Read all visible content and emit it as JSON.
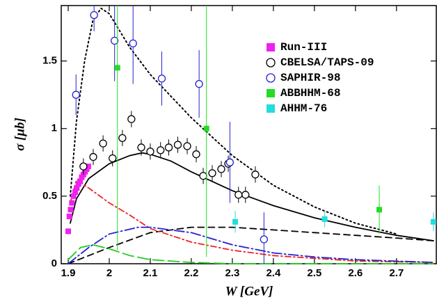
{
  "chart_data": {
    "type": "scatter",
    "xlabel": "W [GeV]",
    "ylabel": "σ [μb]",
    "xlim": [
      1.883,
      2.797
    ],
    "ylim": [
      0,
      1.91
    ],
    "xticks": [
      1.9,
      2,
      2.1,
      2.2,
      2.3,
      2.4,
      2.5,
      2.6,
      2.7
    ],
    "yticks": [
      0,
      0.5,
      1,
      1.5
    ],
    "legend_position": "upper right",
    "series": [
      {
        "name": "Run-III",
        "color": "#ee22ee",
        "marker": "square-filled",
        "x": [
          1.9,
          1.903,
          1.906,
          1.909,
          1.913,
          1.917,
          1.921,
          1.925,
          1.929,
          1.933,
          1.937,
          1.941,
          1.945,
          1.949
        ],
        "values": [
          0.24,
          0.35,
          0.4,
          0.45,
          0.5,
          0.53,
          0.56,
          0.59,
          0.61,
          0.64,
          0.66,
          0.68,
          0.7,
          0.72
        ],
        "errors": [
          0.01,
          0.01,
          0.01,
          0.01,
          0.01,
          0.01,
          0.01,
          0.01,
          0.01,
          0.01,
          0.01,
          0.01,
          0.01,
          0.01
        ]
      },
      {
        "name": "CBELSA/TAPS-09",
        "color": "#000000",
        "marker": "circle-open",
        "x": [
          1.937,
          1.961,
          1.985,
          2.008,
          2.032,
          2.054,
          2.078,
          2.1,
          2.125,
          2.145,
          2.167,
          2.19,
          2.212,
          2.229,
          2.251,
          2.273,
          2.29,
          2.315,
          2.332,
          2.356
        ],
        "values": [
          0.72,
          0.79,
          0.89,
          0.78,
          0.93,
          1.07,
          0.86,
          0.83,
          0.84,
          0.86,
          0.88,
          0.87,
          0.81,
          0.65,
          0.67,
          0.7,
          0.74,
          0.51,
          0.51,
          0.66
        ],
        "errors": [
          0.06,
          0.06,
          0.06,
          0.06,
          0.06,
          0.06,
          0.06,
          0.06,
          0.06,
          0.06,
          0.06,
          0.06,
          0.06,
          0.06,
          0.06,
          0.06,
          0.06,
          0.06,
          0.06,
          0.06
        ]
      },
      {
        "name": "SAPHIR-98",
        "color": "#2222cc",
        "marker": "circle-open",
        "x": [
          1.919,
          1.963,
          2.013,
          2.058,
          2.128,
          2.219,
          2.294,
          2.377
        ],
        "values": [
          1.25,
          1.84,
          1.65,
          1.63,
          1.37,
          1.33,
          0.75,
          0.18
        ],
        "errors": [
          0.15,
          0.12,
          0.3,
          0.3,
          0.2,
          0.25,
          0.3,
          0.2
        ]
      },
      {
        "name": "ABBHHM-68",
        "color": "#22dd22",
        "marker": "square-filled",
        "x": [
          2.02,
          2.237,
          2.658
        ],
        "values": [
          1.45,
          1.0,
          0.4
        ],
        "errors": [
          1.35,
          0.95,
          0.18
        ]
      },
      {
        "name": "AHHM-76",
        "color": "#22dddd",
        "marker": "square-filled",
        "x": [
          2.307,
          2.525,
          2.79
        ],
        "values": [
          0.31,
          0.33,
          0.31
        ],
        "errors": [
          0.08,
          0.06,
          0.07
        ]
      }
    ],
    "curves": [
      {
        "color": "#000000",
        "dash": "solid",
        "x": [
          1.905,
          1.92,
          1.95,
          2.0,
          2.05,
          2.08,
          2.1,
          2.15,
          2.2,
          2.3,
          2.4,
          2.5,
          2.6,
          2.7,
          2.79
        ],
        "values": [
          0.3,
          0.48,
          0.63,
          0.74,
          0.8,
          0.82,
          0.81,
          0.76,
          0.68,
          0.54,
          0.43,
          0.34,
          0.27,
          0.21,
          0.17
        ]
      },
      {
        "color": "#000000",
        "dash": "dotted",
        "x": [
          1.905,
          1.92,
          1.94,
          1.96,
          1.98,
          2.0,
          2.05,
          2.1,
          2.2,
          2.3,
          2.4,
          2.5,
          2.6,
          2.7
        ],
        "values": [
          0.5,
          1.05,
          1.5,
          1.8,
          1.89,
          1.85,
          1.6,
          1.4,
          1.08,
          0.8,
          0.58,
          0.42,
          0.3,
          0.22
        ]
      },
      {
        "color": "#000000",
        "dash": "dashed",
        "x": [
          1.9,
          2.0,
          2.1,
          2.2,
          2.3,
          2.4,
          2.5,
          2.6,
          2.7,
          2.79
        ],
        "values": [
          0.0,
          0.12,
          0.23,
          0.27,
          0.27,
          0.25,
          0.23,
          0.21,
          0.19,
          0.17
        ]
      },
      {
        "color": "#ee2222",
        "dash": "dashdot",
        "x": [
          1.905,
          1.92,
          1.95,
          2.0,
          2.05,
          2.1,
          2.2,
          2.3,
          2.4,
          2.5,
          2.6,
          2.79
        ],
        "values": [
          0.45,
          0.62,
          0.56,
          0.45,
          0.36,
          0.26,
          0.16,
          0.1,
          0.06,
          0.04,
          0.02,
          0.01
        ]
      },
      {
        "color": "#2222cc",
        "dash": "longdashdot",
        "x": [
          1.9,
          1.95,
          2.0,
          2.07,
          2.1,
          2.2,
          2.3,
          2.4,
          2.5,
          2.6,
          2.79
        ],
        "values": [
          0.0,
          0.12,
          0.22,
          0.27,
          0.27,
          0.23,
          0.14,
          0.08,
          0.05,
          0.03,
          0.01
        ]
      },
      {
        "color": "#22cc22",
        "dash": "longdash",
        "x": [
          1.9,
          1.93,
          1.96,
          2.0,
          2.05,
          2.1,
          2.2,
          2.3,
          2.79
        ],
        "values": [
          0.03,
          0.12,
          0.14,
          0.11,
          0.06,
          0.03,
          0.01,
          0.0,
          0.0
        ]
      }
    ]
  }
}
